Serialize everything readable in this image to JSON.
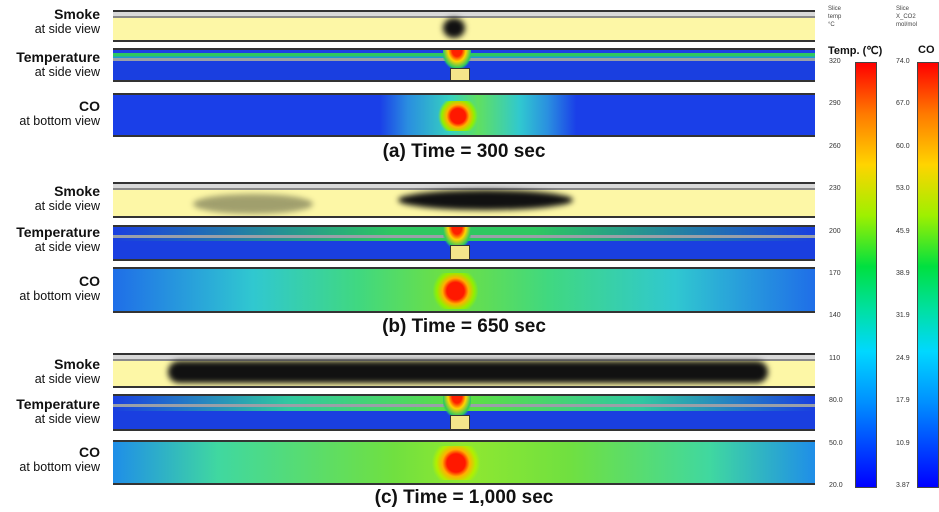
{
  "rows": [
    {
      "smoke": {
        "title": "Smoke",
        "sub": "at side view"
      },
      "temp": {
        "title": "Temperature",
        "sub": "at side view"
      },
      "co": {
        "title": "CO",
        "sub": "at bottom view"
      },
      "caption": "(a) Time = 300 sec"
    },
    {
      "smoke": {
        "title": "Smoke",
        "sub": "at side view"
      },
      "temp": {
        "title": "Temperature",
        "sub": "at side view"
      },
      "co": {
        "title": "CO",
        "sub": "at bottom view"
      },
      "caption": "(b) Time = 650 sec"
    },
    {
      "smoke": {
        "title": "Smoke",
        "sub": "at side view"
      },
      "temp": {
        "title": "Temperature",
        "sub": "at side view"
      },
      "co": {
        "title": "CO",
        "sub": "at bottom view"
      },
      "caption": "(c) Time = 1,000 sec"
    }
  ],
  "legend_temp": {
    "header": [
      "Slice",
      "temp",
      "°C"
    ],
    "title": "Temp. (℃)",
    "ticks": [
      "320",
      "290",
      "260",
      "230",
      "200",
      "170",
      "140",
      "110",
      "80.0",
      "50.0",
      "20.0"
    ]
  },
  "legend_co": {
    "header": [
      "Slice",
      "X_CO2",
      "mol/mol"
    ],
    "title": "CO",
    "ticks": [
      "74.0",
      "67.0",
      "60.0",
      "53.0",
      "45.9",
      "38.9",
      "31.9",
      "24.9",
      "17.9",
      "10.9",
      "3.87"
    ]
  },
  "colors": {
    "smoke_bg": "#fdf7a6",
    "smoke": "#111111",
    "cold": "#1a3fe8",
    "hot": "#ff2000"
  }
}
